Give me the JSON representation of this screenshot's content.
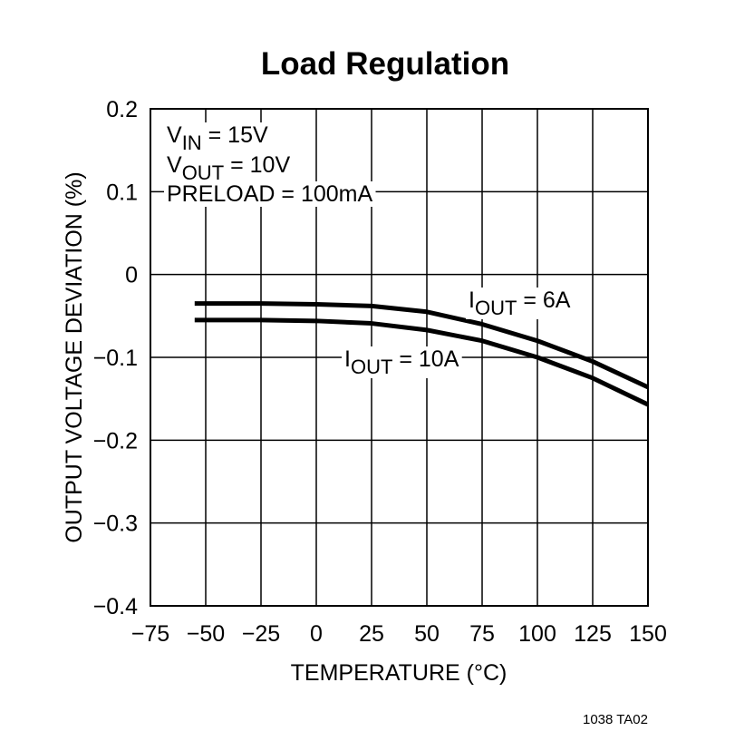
{
  "chart_data": {
    "type": "line",
    "title": "Load Regulation",
    "x_label": "TEMPERATURE (°C)",
    "y_label": "OUTPUT VOLTAGE DEVIATION (%)",
    "xlim": [
      -75,
      150
    ],
    "xticks": [
      {
        "value": -75,
        "label": "−75"
      },
      {
        "value": -50,
        "label": "−50"
      },
      {
        "value": -25,
        "label": "−25"
      },
      0,
      25,
      50,
      75,
      100,
      125,
      150
    ],
    "ylim": [
      -0.4,
      0.2
    ],
    "yticks": [
      0.2,
      0.1,
      0,
      {
        "value": -0.1,
        "label": "−0.1"
      },
      {
        "value": -0.2,
        "label": "−0.2"
      },
      {
        "value": -0.3,
        "label": "−0.3"
      },
      {
        "value": -0.4,
        "label": "−0.4"
      }
    ],
    "grid": true,
    "series": [
      {
        "color": "#000000",
        "x": [
          -55,
          -25,
          0,
          25,
          50,
          75,
          100,
          125,
          150
        ],
        "values": [
          -0.035,
          -0.035,
          -0.036,
          -0.038,
          -0.045,
          -0.06,
          -0.08,
          -0.105,
          -0.136
        ]
      },
      {
        "color": "#000000",
        "x": [
          -55,
          -25,
          0,
          25,
          50,
          75,
          100,
          125,
          150
        ],
        "values": [
          -0.055,
          -0.055,
          -0.056,
          -0.059,
          -0.067,
          -0.08,
          -0.1,
          -0.125,
          -0.157
        ]
      }
    ],
    "annotations": [
      {
        "main": "V",
        "sub": "IN",
        "rest": " = 15V"
      },
      {
        "main": "V",
        "sub": "OUT",
        "rest": " = 10V"
      },
      {
        "main": "PRELOAD = 100mA"
      },
      {
        "main": "I",
        "sub": "OUT",
        "rest": " = 6A"
      },
      {
        "main": "I",
        "sub": "OUT",
        "rest": " = 10A"
      }
    ],
    "footnote": "1038 TA02"
  }
}
